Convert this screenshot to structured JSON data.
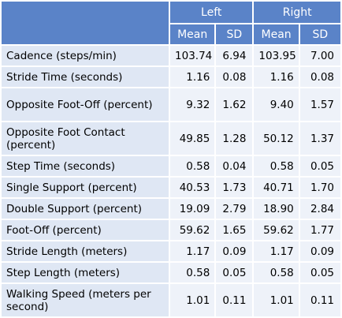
{
  "header": {
    "groups": [
      "Left",
      "Right"
    ],
    "subheaders": [
      "Mean",
      "SD",
      "Mean",
      "SD"
    ]
  },
  "rows": [
    {
      "label": "Cadence (steps/min)",
      "values": [
        "103.74",
        "6.94",
        "103.95",
        "7.00"
      ]
    },
    {
      "label": "Stride Time (seconds)",
      "values": [
        "1.16",
        "0.08",
        "1.16",
        "0.08"
      ]
    },
    {
      "label": "Opposite Foot-Off (percent)",
      "values": [
        "9.32",
        "1.62",
        "9.40",
        "1.57"
      ]
    },
    {
      "label": "Opposite Foot Contact (percent)",
      "values": [
        "49.85",
        "1.28",
        "50.12",
        "1.37"
      ]
    },
    {
      "label": "Step Time (seconds)",
      "values": [
        "0.58",
        "0.04",
        "0.58",
        "0.05"
      ]
    },
    {
      "label": "Single Support (percent)",
      "values": [
        "40.53",
        "1.73",
        "40.71",
        "1.70"
      ]
    },
    {
      "label": "Double Support (percent)",
      "values": [
        "19.09",
        "2.79",
        "18.90",
        "2.84"
      ]
    },
    {
      "label": "Foot-Off (percent)",
      "values": [
        "59.62",
        "1.65",
        "59.62",
        "1.77"
      ]
    },
    {
      "label": "Stride Length (meters)",
      "values": [
        "1.17",
        "0.09",
        "1.17",
        "0.09"
      ]
    },
    {
      "label": "Step Length (meters)",
      "values": [
        "0.58",
        "0.05",
        "0.58",
        "0.05"
      ]
    },
    {
      "label": "Walking Speed (meters per second)",
      "values": [
        "1.01",
        "0.11",
        "1.01",
        "0.11"
      ]
    }
  ]
}
